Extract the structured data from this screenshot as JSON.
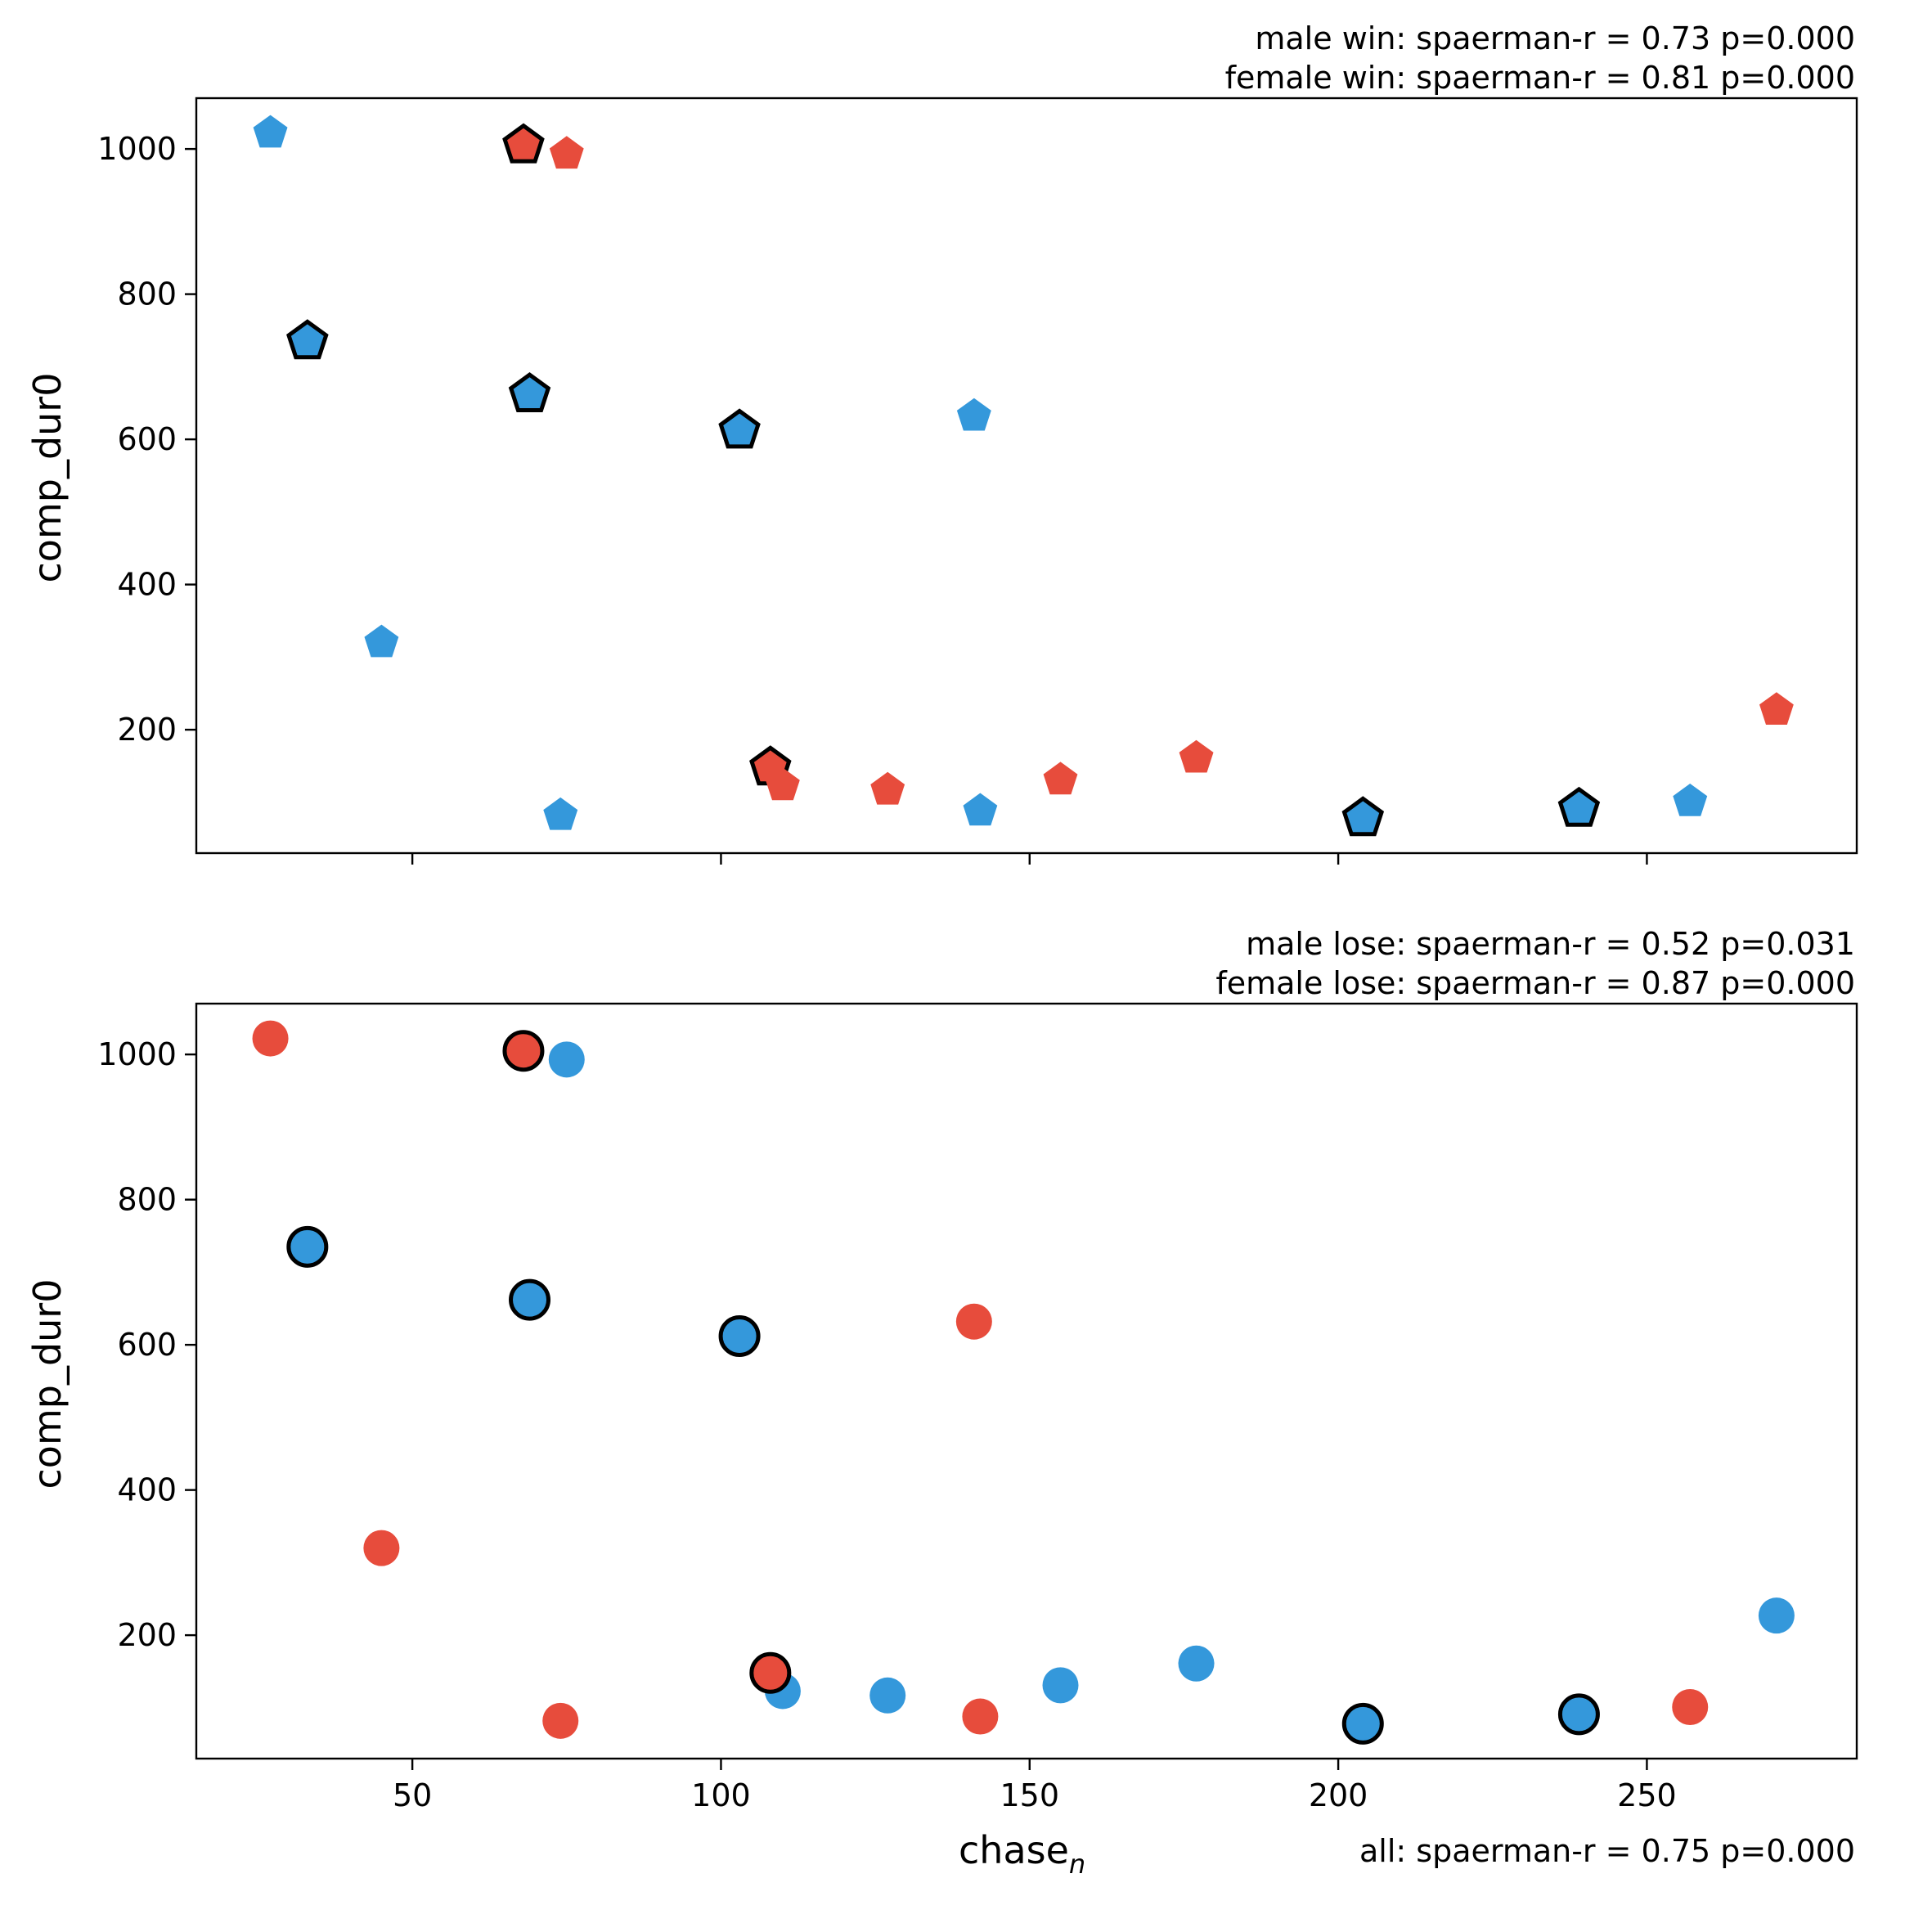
{
  "colors": {
    "blue": "#3498DB",
    "red": "#E74C3C",
    "edge": "#000000"
  },
  "chart_data": [
    {
      "type": "scatter",
      "marker": "pentagon",
      "xlabel": "",
      "ylabel": "comp_dur0",
      "xlim": [
        15,
        284
      ],
      "ylim": [
        30,
        1070
      ],
      "xticks": [
        50,
        100,
        150,
        200,
        250
      ],
      "yticks": [
        200,
        400,
        600,
        800,
        1000
      ],
      "annotations": [
        "male win: spaerman-r = 0.73 p=0.000",
        "female win: spaerman-r = 0.81 p=0.000"
      ],
      "points": [
        {
          "x": 27,
          "y": 1022,
          "color": "blue",
          "outlined": false
        },
        {
          "x": 33,
          "y": 735,
          "color": "blue",
          "outlined": true
        },
        {
          "x": 45,
          "y": 320,
          "color": "blue",
          "outlined": false
        },
        {
          "x": 68,
          "y": 1005,
          "color": "red",
          "outlined": true
        },
        {
          "x": 69,
          "y": 662,
          "color": "blue",
          "outlined": true
        },
        {
          "x": 74,
          "y": 82,
          "color": "blue",
          "outlined": false
        },
        {
          "x": 75,
          "y": 993,
          "color": "red",
          "outlined": false
        },
        {
          "x": 103,
          "y": 612,
          "color": "blue",
          "outlined": true
        },
        {
          "x": 108,
          "y": 148,
          "color": "red",
          "outlined": true
        },
        {
          "x": 110,
          "y": 123,
          "color": "red",
          "outlined": false
        },
        {
          "x": 127,
          "y": 117,
          "color": "red",
          "outlined": false
        },
        {
          "x": 141,
          "y": 632,
          "color": "blue",
          "outlined": false
        },
        {
          "x": 142,
          "y": 88,
          "color": "blue",
          "outlined": false
        },
        {
          "x": 155,
          "y": 131,
          "color": "red",
          "outlined": false
        },
        {
          "x": 177,
          "y": 161,
          "color": "red",
          "outlined": false
        },
        {
          "x": 204,
          "y": 78,
          "color": "blue",
          "outlined": true
        },
        {
          "x": 239,
          "y": 91,
          "color": "blue",
          "outlined": true
        },
        {
          "x": 257,
          "y": 101,
          "color": "blue",
          "outlined": false
        },
        {
          "x": 271,
          "y": 227,
          "color": "red",
          "outlined": false
        }
      ]
    },
    {
      "type": "scatter",
      "marker": "circle",
      "xlabel": "chase",
      "xlabel_sub": "n",
      "ylabel": "comp_dur0",
      "xlim": [
        15,
        284
      ],
      "ylim": [
        30,
        1070
      ],
      "xticks": [
        50,
        100,
        150,
        200,
        250
      ],
      "yticks": [
        200,
        400,
        600,
        800,
        1000
      ],
      "annotations": [
        "male lose: spaerman-r = 0.52 p=0.031",
        "female lose: spaerman-r = 0.87 p=0.000"
      ],
      "footer": "all: spaerman-r = 0.75 p=0.000",
      "points": [
        {
          "x": 27,
          "y": 1022,
          "color": "red",
          "outlined": false
        },
        {
          "x": 33,
          "y": 735,
          "color": "blue",
          "outlined": true
        },
        {
          "x": 45,
          "y": 320,
          "color": "red",
          "outlined": false
        },
        {
          "x": 68,
          "y": 1005,
          "color": "red",
          "outlined": true
        },
        {
          "x": 69,
          "y": 662,
          "color": "blue",
          "outlined": true
        },
        {
          "x": 74,
          "y": 82,
          "color": "red",
          "outlined": false
        },
        {
          "x": 75,
          "y": 993,
          "color": "blue",
          "outlined": false
        },
        {
          "x": 103,
          "y": 612,
          "color": "blue",
          "outlined": true
        },
        {
          "x": 110,
          "y": 123,
          "color": "blue",
          "outlined": false
        },
        {
          "x": 108,
          "y": 148,
          "color": "red",
          "outlined": true
        },
        {
          "x": 127,
          "y": 117,
          "color": "blue",
          "outlined": false
        },
        {
          "x": 141,
          "y": 632,
          "color": "red",
          "outlined": false
        },
        {
          "x": 142,
          "y": 88,
          "color": "red",
          "outlined": false
        },
        {
          "x": 155,
          "y": 131,
          "color": "blue",
          "outlined": false
        },
        {
          "x": 177,
          "y": 161,
          "color": "blue",
          "outlined": false
        },
        {
          "x": 204,
          "y": 78,
          "color": "blue",
          "outlined": true
        },
        {
          "x": 239,
          "y": 91,
          "color": "blue",
          "outlined": true
        },
        {
          "x": 257,
          "y": 101,
          "color": "red",
          "outlined": false
        },
        {
          "x": 271,
          "y": 227,
          "color": "blue",
          "outlined": false
        }
      ]
    }
  ]
}
